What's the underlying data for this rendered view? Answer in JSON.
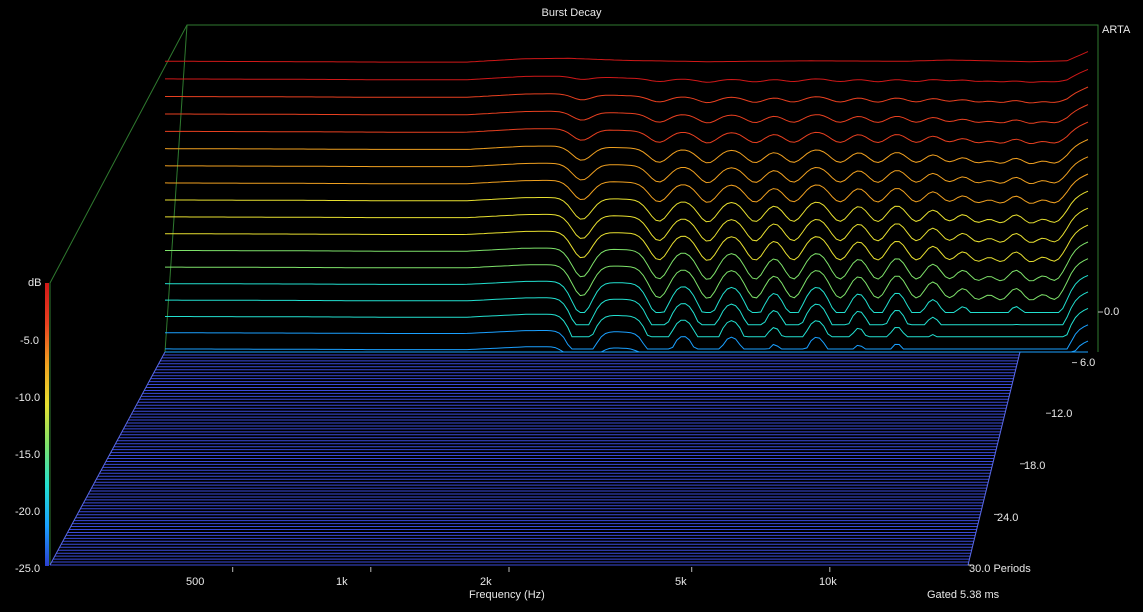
{
  "chart_data": {
    "type": "waterfall",
    "title": "Burst Decay",
    "brand": "ARTA",
    "xlabel": "Frequency (Hz)",
    "x_scale": "log",
    "x_ticks": [
      "500",
      "1k",
      "2k",
      "5k",
      "10k"
    ],
    "x_tick_values": [
      500,
      1000,
      2000,
      5000,
      10000
    ],
    "x_range_hz": [
      200,
      20000
    ],
    "z_label": "dB",
    "z_ticks": [
      "-5.0",
      "-10.0",
      "-15.0",
      "-20.0",
      "-25.0"
    ],
    "z_range_db": [
      -25,
      0
    ],
    "depth_label": "Periods",
    "depth_ticks": [
      "0.0",
      "6.0",
      "12.0",
      "18.0",
      "24.0",
      "30.0 Periods"
    ],
    "depth_tick_values": [
      0,
      6,
      12,
      18,
      24,
      30
    ],
    "footer": "Gated 5.38 ms",
    "colormap": [
      "#2a3fd0",
      "#1aa0ff",
      "#22e0d0",
      "#7ee26a",
      "#e8e030",
      "#f0a020",
      "#e84020",
      "#d01818"
    ],
    "floor_color": "#3a4ad8",
    "frame_color": "#2f7a2f",
    "front_slice_response_db": [
      [
        200,
        -2.8
      ],
      [
        400,
        -2.9
      ],
      [
        600,
        -3.0
      ],
      [
        900,
        -3.0
      ],
      [
        1200,
        -2.2
      ],
      [
        1500,
        -2.1
      ],
      [
        2000,
        -2.6
      ],
      [
        3000,
        -2.9
      ],
      [
        5000,
        -2.7
      ],
      [
        8000,
        -2.8
      ],
      [
        10000,
        -2.5
      ],
      [
        15000,
        -2.9
      ],
      [
        18000,
        -2.7
      ],
      [
        20000,
        -0.5
      ]
    ],
    "notch_frequencies_hz": [
      1600,
      2350,
      3000,
      3800,
      4600,
      5800,
      7000,
      8500,
      10000,
      11500,
      13000,
      15000,
      17000
    ],
    "slice_count": 21
  }
}
